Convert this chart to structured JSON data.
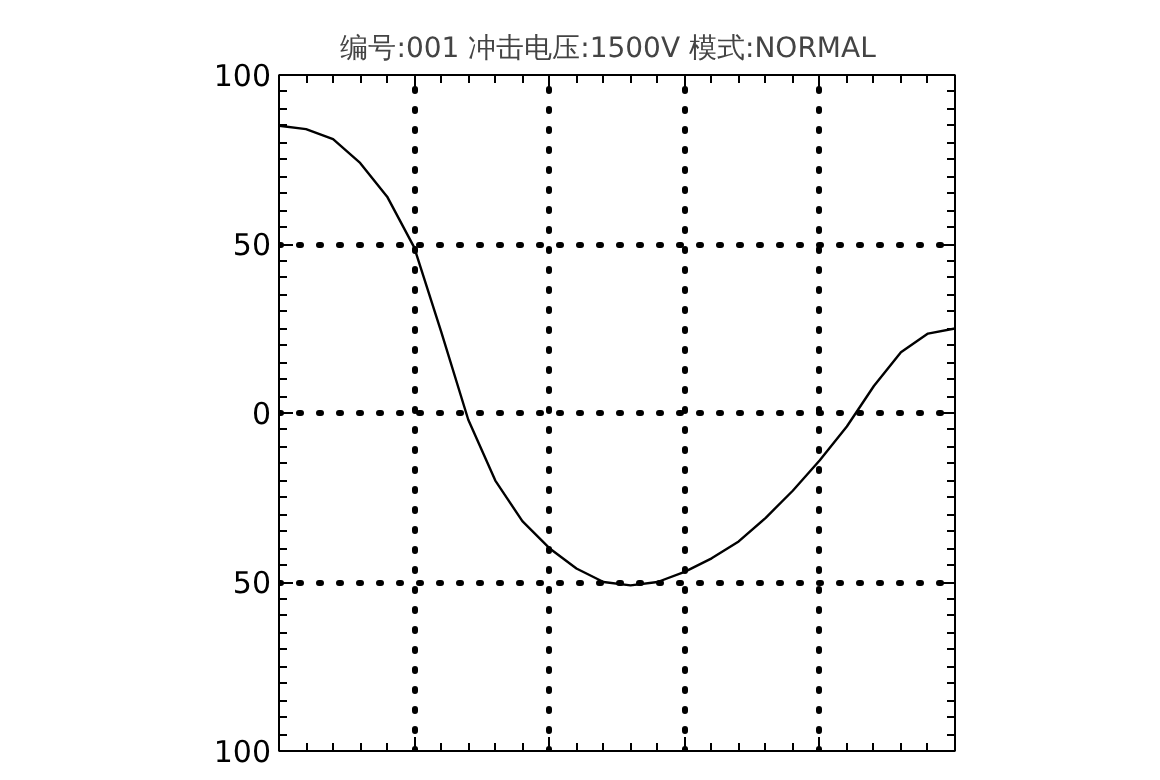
{
  "chart_data": {
    "type": "line",
    "title": "编号:001  冲击电压:1500V  模式:NORMAL",
    "categories": [
      null,
      null,
      null,
      null,
      null,
      null,
      null,
      null,
      null,
      null,
      null,
      null,
      null,
      null,
      null,
      null,
      null,
      null,
      null,
      null,
      null,
      null,
      null,
      null,
      null,
      null
    ],
    "series": [
      {
        "color": "#000000",
        "values": [
          85,
          84,
          81,
          74,
          64,
          49,
          24,
          -2,
          -20,
          -32,
          -40,
          -46,
          -50,
          -51,
          -50,
          -47,
          -43,
          -38,
          -31,
          -23,
          -14,
          -4,
          8,
          18,
          23.5,
          25
        ]
      }
    ],
    "ylim": [
      -100,
      100
    ],
    "yticks": [
      100,
      50,
      0,
      {
        "value": -50,
        "label": "50"
      },
      {
        "value": -100,
        "label": "100"
      }
    ],
    "grid": true,
    "marker": "none",
    "line_style": "solid",
    "tick_labels": "y"
  }
}
